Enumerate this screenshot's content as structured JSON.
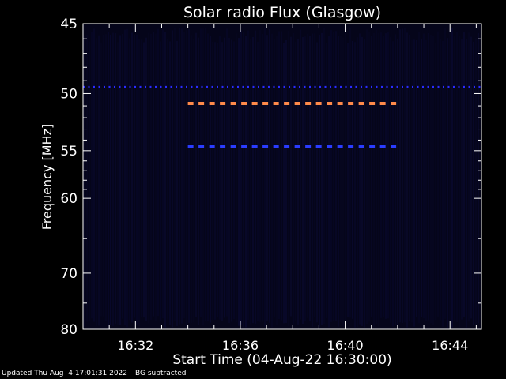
{
  "chart_data": {
    "type": "heatmap",
    "title": "Solar radio Flux (Glasgow)",
    "xlabel": "Start Time (04-Aug-22 16:30:00)",
    "ylabel": "Frequency [MHz]",
    "x_unit": "minutes after 16:30",
    "xlim": [
      0,
      15.2
    ],
    "ylim": [
      45,
      80
    ],
    "x_ticks": [
      {
        "value": 2,
        "label": "16:32"
      },
      {
        "value": 6,
        "label": "16:36"
      },
      {
        "value": 10,
        "label": "16:40"
      },
      {
        "value": 14,
        "label": "16:44"
      }
    ],
    "y_ticks": [
      {
        "value": 45,
        "label": "45"
      },
      {
        "value": 50,
        "label": "50"
      },
      {
        "value": 55,
        "label": "55"
      },
      {
        "value": 60,
        "label": "60"
      },
      {
        "value": 70,
        "label": "70"
      },
      {
        "value": 80,
        "label": "80"
      }
    ],
    "y_minor_ticks": [
      46,
      47,
      48,
      49,
      51,
      52,
      53,
      54,
      56,
      57,
      58,
      59,
      65,
      75
    ],
    "features": [
      {
        "frequency": 49.5,
        "x_start": 0,
        "x_end": 15.2,
        "color": "#2a2cff",
        "intensity": "low"
      },
      {
        "frequency": 50.8,
        "x_start": 4.0,
        "x_end": 12.1,
        "color": "#ff8a4a",
        "intensity": "high"
      },
      {
        "frequency": 54.6,
        "x_start": 4.0,
        "x_end": 12.1,
        "color": "#2a3cff",
        "intensity": "low"
      }
    ],
    "background_color": "#05051a"
  },
  "footer": {
    "updated": "Updated Thu Aug  4 17:01:31 2022",
    "note": "BG subtracted"
  }
}
